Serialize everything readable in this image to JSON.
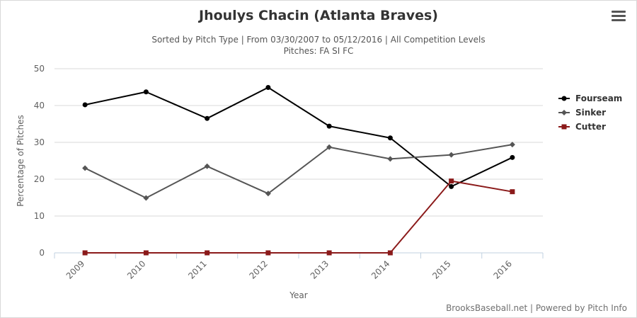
{
  "chart_data": {
    "type": "line",
    "title": "Jhoulys Chacin (Atlanta Braves)",
    "subtitle": "Sorted by Pitch Type | From 03/30/2007 to 05/12/2016 | All Competition Levels",
    "subtitle2": "Pitches: FA SI FC",
    "xlabel": "Year",
    "ylabel": "Percentage of Pitches",
    "categories": [
      "2009",
      "2010",
      "2011",
      "2012",
      "2013",
      "2014",
      "2015",
      "2016"
    ],
    "ylim": [
      0,
      50
    ],
    "yticks": [
      "0",
      "10",
      "20",
      "30",
      "40",
      "50"
    ],
    "grid": true,
    "legend_position": "right",
    "series": [
      {
        "name": "Fourseam",
        "color": "#000000",
        "marker": "circle",
        "values": [
          40.2,
          43.7,
          36.5,
          44.9,
          34.4,
          31.2,
          18.0,
          25.9
        ]
      },
      {
        "name": "Sinker",
        "color": "#555555",
        "marker": "diamond",
        "values": [
          23.0,
          14.9,
          23.5,
          16.1,
          28.7,
          25.5,
          26.6,
          29.4
        ]
      },
      {
        "name": "Cutter",
        "color": "#8b1a1a",
        "marker": "square",
        "values": [
          0,
          0,
          0,
          0,
          0,
          0,
          19.5,
          16.6
        ]
      }
    ]
  },
  "credits": "BrooksBaseball.net | Powered by Pitch Info",
  "menu_icon": "hamburger-menu-icon"
}
